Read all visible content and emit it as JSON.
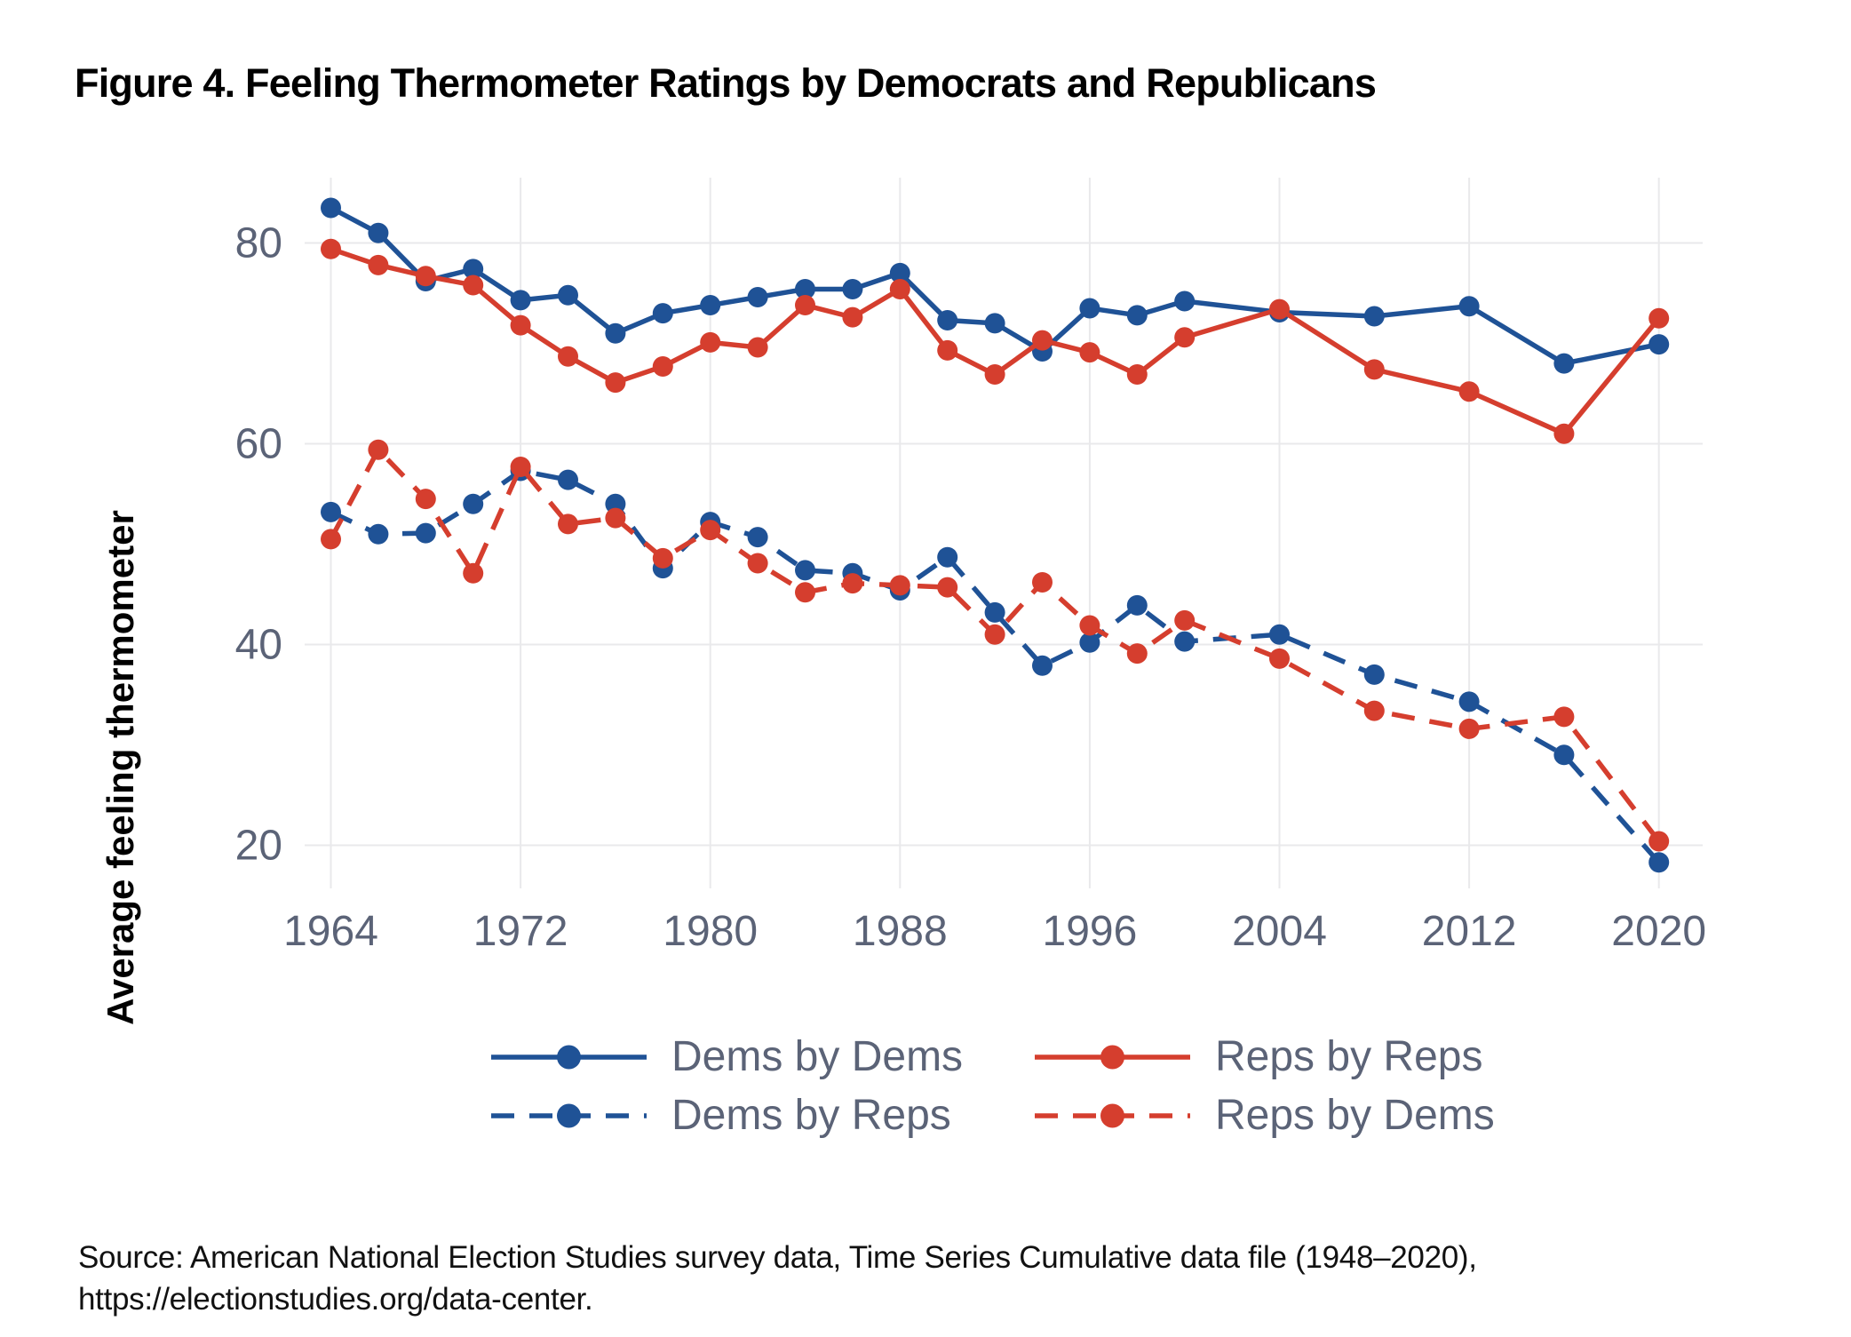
{
  "title": "Figure 4. Feeling Thermometer Ratings by Democrats and Republicans",
  "colors": {
    "dem_blue": "#1f5296",
    "rep_red": "#d53e2e",
    "axis_text": "#5b6377",
    "gridline": "#e9e9eb",
    "title_text": "#000000",
    "source_text": "#111111"
  },
  "chart_data": {
    "type": "line",
    "title": "Figure 4. Feeling Thermometer Ratings by Democrats and Republicans",
    "xlabel": "",
    "ylabel": "Average feeling thermometer",
    "x": [
      1964,
      1966,
      1968,
      1970,
      1972,
      1974,
      1976,
      1978,
      1980,
      1982,
      1984,
      1986,
      1988,
      1990,
      1992,
      1994,
      1996,
      1998,
      2000,
      2004,
      2008,
      2012,
      2016,
      2020
    ],
    "series": [
      {
        "name": "Dems by Dems",
        "color_key": "dem_blue",
        "dash": "solid",
        "values": [
          83.5,
          81.0,
          76.2,
          77.4,
          74.3,
          74.8,
          71.0,
          73.0,
          73.8,
          74.6,
          75.4,
          75.4,
          77.0,
          72.3,
          72.0,
          69.2,
          73.5,
          72.8,
          74.2,
          73.1,
          72.7,
          73.7,
          68.0,
          69.9
        ]
      },
      {
        "name": "Dems by Reps",
        "color_key": "dem_blue",
        "dash": "dashed",
        "values": [
          53.2,
          51.0,
          51.1,
          54.0,
          57.3,
          56.4,
          54.0,
          47.6,
          52.2,
          50.7,
          47.4,
          47.1,
          45.4,
          48.7,
          43.2,
          37.9,
          40.2,
          43.9,
          40.3,
          41.0,
          37.0,
          34.3,
          29.0,
          18.3
        ]
      },
      {
        "name": "Reps by Reps",
        "color_key": "rep_red",
        "dash": "solid",
        "values": [
          79.4,
          77.8,
          76.7,
          75.8,
          71.8,
          68.7,
          66.1,
          67.7,
          70.1,
          69.6,
          73.8,
          72.6,
          75.4,
          69.3,
          66.9,
          70.3,
          69.1,
          66.9,
          70.6,
          73.4,
          67.4,
          65.2,
          61.0,
          72.5
        ]
      },
      {
        "name": "Reps by Dems",
        "color_key": "rep_red",
        "dash": "dashed",
        "values": [
          50.5,
          59.4,
          54.5,
          47.1,
          57.7,
          52.0,
          52.6,
          48.6,
          51.4,
          48.1,
          45.2,
          46.1,
          45.9,
          45.7,
          41.0,
          46.2,
          41.9,
          39.1,
          42.4,
          38.6,
          33.4,
          31.6,
          32.8,
          20.4
        ]
      }
    ],
    "xticks": [
      1964,
      1972,
      1980,
      1988,
      1996,
      2004,
      2012,
      2020
    ],
    "yticks": [
      20,
      40,
      60,
      80
    ],
    "ylim": [
      15.5,
      86.5
    ],
    "xlim": [
      1962.9,
      2021.9
    ],
    "grid": true,
    "legend_position": "bottom"
  },
  "legend": {
    "items": [
      {
        "label": "Dems by Dems",
        "color_key": "dem_blue",
        "dash": "solid"
      },
      {
        "label": "Reps by Reps",
        "color_key": "rep_red",
        "dash": "solid"
      },
      {
        "label": "Dems by Reps",
        "color_key": "dem_blue",
        "dash": "dashed"
      },
      {
        "label": "Reps by Dems",
        "color_key": "rep_red",
        "dash": "dashed"
      }
    ]
  },
  "source": {
    "line1": "Source: American National Election Studies survey data, Time Series Cumulative data file (1948–2020),",
    "line2": "https://electionstudies.org/data-center."
  }
}
